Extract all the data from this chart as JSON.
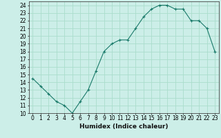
{
  "x": [
    0,
    1,
    2,
    3,
    4,
    5,
    6,
    7,
    8,
    9,
    10,
    11,
    12,
    13,
    14,
    15,
    16,
    17,
    18,
    19,
    20,
    21,
    22,
    23
  ],
  "y": [
    14.5,
    13.5,
    12.5,
    11.5,
    11.0,
    10.0,
    11.5,
    13.0,
    15.5,
    18.0,
    19.0,
    19.5,
    19.5,
    21.0,
    22.5,
    23.5,
    24.0,
    24.0,
    23.5,
    23.5,
    22.0,
    22.0,
    21.0,
    18.0
  ],
  "line_color": "#1a7a6a",
  "marker": "+",
  "marker_size": 3,
  "bg_color": "#cceee8",
  "grid_color": "#aaddcc",
  "xlabel": "Humidex (Indice chaleur)",
  "xlim": [
    -0.5,
    23.5
  ],
  "ylim": [
    10,
    24.5
  ],
  "yticks": [
    10,
    11,
    12,
    13,
    14,
    15,
    16,
    17,
    18,
    19,
    20,
    21,
    22,
    23,
    24
  ],
  "xticks": [
    0,
    1,
    2,
    3,
    4,
    5,
    6,
    7,
    8,
    9,
    10,
    11,
    12,
    13,
    14,
    15,
    16,
    17,
    18,
    19,
    20,
    21,
    22,
    23
  ],
  "tick_fontsize": 5.5,
  "label_fontsize": 6.5
}
